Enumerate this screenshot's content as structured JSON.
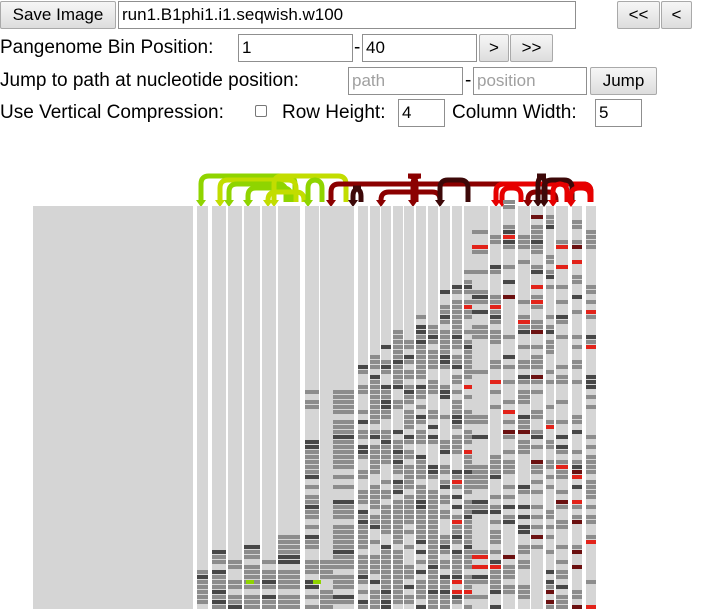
{
  "controls": {
    "save_button": "Save Image",
    "graph_file": "run1.B1phi1.i1.seqwish.w100",
    "nav_first": "<<",
    "nav_prev": "<",
    "bin_label": "Pangenome Bin Position:",
    "bin_start": "1",
    "bin_sep": "-",
    "bin_end": "40",
    "nav_next": ">",
    "nav_last": ">>",
    "jump_label": "Jump to path at nucleotide position:",
    "path_placeholder": "path",
    "pos_sep": "-",
    "position_placeholder": "position",
    "jump_button": "Jump",
    "compression_label": "Use Vertical Compression:",
    "compression_checked": false,
    "row_height_label": "Row Height:",
    "row_height": "4",
    "column_width_label": "Column Width:",
    "column_width": "5"
  },
  "visualization": {
    "colors": {
      "bin_empty": "#d5d5d5",
      "bin_present": "#8c8c8c",
      "bin_dark": "#474747",
      "bin_red": "#e2231a",
      "bin_maroon": "#6b1010",
      "link_green": "#8fd400",
      "link_yellowgreen": "#c2dd00",
      "link_darkred": "#8b0000",
      "link_red": "#e60000",
      "link_darkbrown": "#3d0808"
    }
  }
}
